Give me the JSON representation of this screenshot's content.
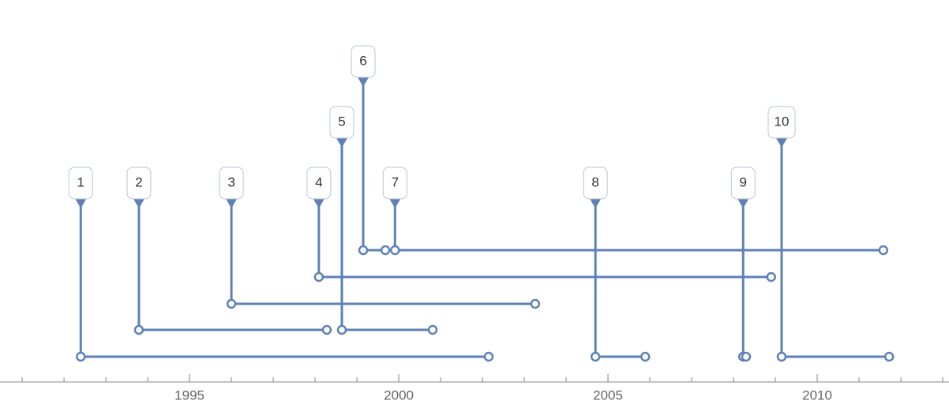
{
  "chart_data": {
    "type": "timeline",
    "categories": [
      "1",
      "2",
      "3",
      "4",
      "5",
      "6",
      "7",
      "8",
      "9",
      "10"
    ],
    "series": [
      {
        "color": "#5e81b5",
        "starts": [
          1992.4,
          1993.79,
          1996.0,
          1998.09,
          1998.64,
          1999.15,
          1999.91,
          2004.7,
          2008.23,
          2009.15
        ],
        "ends": [
          2002.15,
          1998.28,
          2003.26,
          2008.9,
          2000.81,
          1999.68,
          2011.58,
          2005.89,
          2008.3,
          2011.72
        ]
      }
    ],
    "xlim": [
      1990.47,
      2013.15
    ],
    "xticks": [
      1995,
      2000,
      2005,
      2010
    ]
  }
}
